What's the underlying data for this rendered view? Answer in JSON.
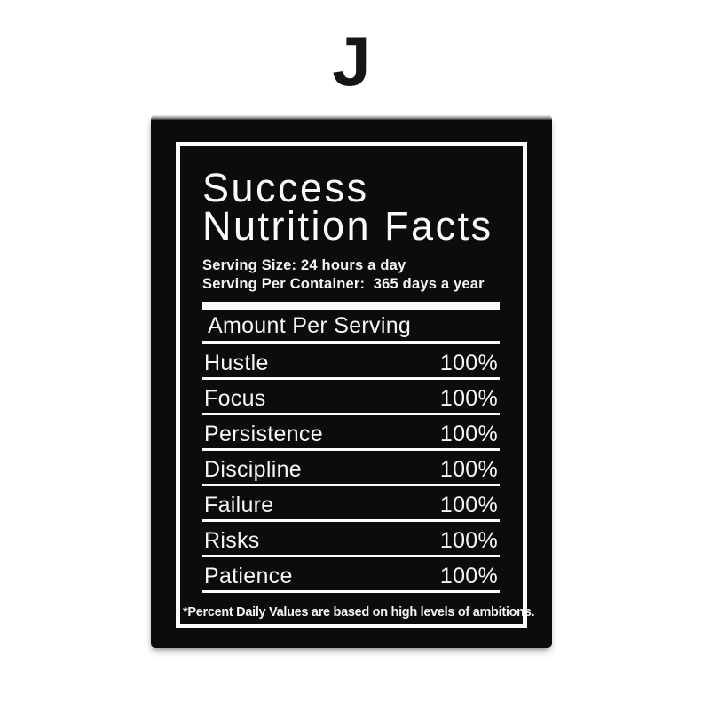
{
  "variant_label": "J",
  "colors": {
    "page_bg": "#ffffff",
    "poster_bg": "#0d0b0c",
    "ink": "#f7f7f7",
    "letter": "#151515"
  },
  "poster": {
    "title_line1": "Success",
    "title_line2": "Nutrition Facts",
    "serving_size": "Serving Size: 24 hours a day",
    "serving_container": "Serving Per Container:  365 days a year",
    "amount_heading": "Amount Per Serving",
    "rows": [
      {
        "label": "Hustle",
        "value": "100%"
      },
      {
        "label": "Focus",
        "value": "100%"
      },
      {
        "label": "Persistence",
        "value": "100%"
      },
      {
        "label": "Discipline",
        "value": "100%"
      },
      {
        "label": "Failure",
        "value": "100%"
      },
      {
        "label": "Risks",
        "value": "100%"
      },
      {
        "label": "Patience",
        "value": "100%"
      }
    ],
    "footnote": "*Percent Daily Values are based on high levels of ambitions."
  }
}
